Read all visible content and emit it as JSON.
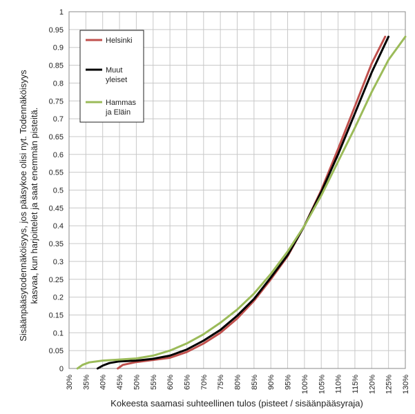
{
  "chart_data": {
    "type": "line",
    "xlabel": "Kokeesta saamasi suhteellinen tulos (pisteet / sisäänpääsyraja)",
    "ylabel_lines": [
      "Sisäänpääsytodennäköisyys, jos pääsykoe olisi nyt. Todennäköisyys",
      "kasvaa, kun harjoittelet ja saat enemmän pisteitä."
    ],
    "xlim": [
      30,
      130
    ],
    "ylim": [
      0,
      1
    ],
    "x_unit": "%",
    "x_ticks": [
      "30%",
      "35%",
      "40%",
      "45%",
      "50%",
      "55%",
      "60%",
      "65%",
      "70%",
      "75%",
      "80%",
      "85%",
      "90%",
      "95%",
      "100%",
      "105%",
      "110%",
      "115%",
      "120%",
      "125%",
      "130%"
    ],
    "y_ticks": [
      "0",
      "0.05",
      "0.1",
      "0.15",
      "0.2",
      "0.25",
      "0.3",
      "0.35",
      "0.4",
      "0.45",
      "0.5",
      "0.55",
      "0.6",
      "0.65",
      "0.7",
      "0.75",
      "0.8",
      "0.85",
      "0.9",
      "0.95",
      "1"
    ],
    "grid": true,
    "legend_position": "top-left",
    "series": [
      {
        "name": "Helsinki",
        "color": "#c0504d",
        "points": [
          [
            44.5,
            0
          ],
          [
            46,
            0.01
          ],
          [
            50,
            0.018
          ],
          [
            55,
            0.024
          ],
          [
            60,
            0.03
          ],
          [
            65,
            0.046
          ],
          [
            70,
            0.07
          ],
          [
            75,
            0.1
          ],
          [
            80,
            0.14
          ],
          [
            85,
            0.19
          ],
          [
            90,
            0.25
          ],
          [
            95,
            0.315
          ],
          [
            100,
            0.4
          ],
          [
            105,
            0.5
          ],
          [
            110,
            0.615
          ],
          [
            115,
            0.735
          ],
          [
            120,
            0.855
          ],
          [
            124,
            0.93
          ]
        ]
      },
      {
        "name": "Muut yleiset",
        "color": "#000000",
        "points": [
          [
            38.5,
            0
          ],
          [
            40,
            0.008
          ],
          [
            42,
            0.015
          ],
          [
            45,
            0.02
          ],
          [
            50,
            0.022
          ],
          [
            55,
            0.027
          ],
          [
            60,
            0.036
          ],
          [
            65,
            0.053
          ],
          [
            70,
            0.078
          ],
          [
            75,
            0.108
          ],
          [
            80,
            0.148
          ],
          [
            85,
            0.195
          ],
          [
            90,
            0.255
          ],
          [
            95,
            0.318
          ],
          [
            100,
            0.4
          ],
          [
            105,
            0.495
          ],
          [
            110,
            0.6
          ],
          [
            115,
            0.715
          ],
          [
            120,
            0.83
          ],
          [
            125,
            0.93
          ]
        ]
      },
      {
        "name": "Hammas ja Eläin",
        "color": "#9bbb59",
        "points": [
          [
            32.5,
            0
          ],
          [
            34,
            0.01
          ],
          [
            36,
            0.017
          ],
          [
            40,
            0.022
          ],
          [
            45,
            0.025
          ],
          [
            50,
            0.028
          ],
          [
            55,
            0.036
          ],
          [
            60,
            0.05
          ],
          [
            65,
            0.07
          ],
          [
            70,
            0.096
          ],
          [
            75,
            0.128
          ],
          [
            80,
            0.165
          ],
          [
            85,
            0.21
          ],
          [
            90,
            0.265
          ],
          [
            95,
            0.328
          ],
          [
            100,
            0.4
          ],
          [
            105,
            0.485
          ],
          [
            110,
            0.58
          ],
          [
            115,
            0.675
          ],
          [
            120,
            0.775
          ],
          [
            125,
            0.865
          ],
          [
            130,
            0.93
          ]
        ]
      }
    ],
    "legend_labels": [
      {
        "lines": [
          "Helsinki"
        ]
      },
      {
        "lines": [
          "Muut",
          "yleiset"
        ]
      },
      {
        "lines": [
          "Hammas",
          "ja Eläin"
        ]
      }
    ]
  }
}
